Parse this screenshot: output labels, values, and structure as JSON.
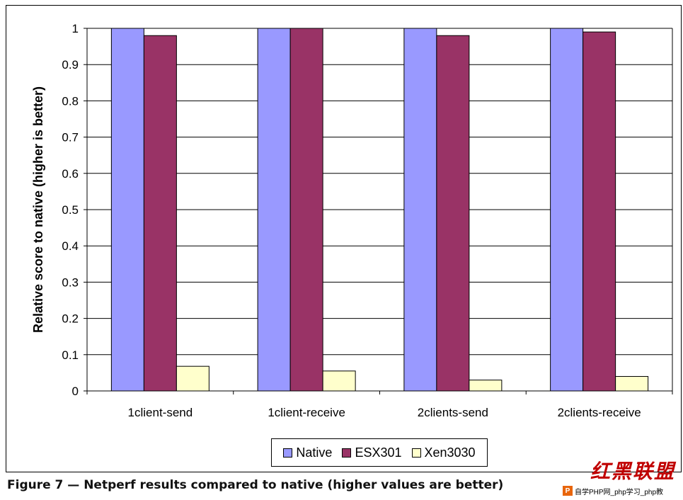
{
  "chart_data": {
    "type": "bar",
    "categories": [
      "1client-send",
      "1client-receive",
      "2clients-send",
      "2clients-receive"
    ],
    "series": [
      {
        "name": "Native",
        "values": [
          1.0,
          1.0,
          1.0,
          1.0
        ],
        "color": "#9999ff"
      },
      {
        "name": "ESX301",
        "values": [
          0.98,
          1.0,
          0.98,
          0.99
        ],
        "color": "#993366"
      },
      {
        "name": "Xen3030",
        "values": [
          0.068,
          0.055,
          0.03,
          0.04
        ],
        "color": "#ffffcc"
      }
    ],
    "xlabel": "",
    "ylabel": "Relative score to native (higher is better)",
    "ylim": [
      0,
      1
    ],
    "yticks": [
      "0",
      "0.1",
      "0.2",
      "0.3",
      "0.4",
      "0.5",
      "0.6",
      "0.7",
      "0.8",
      "0.9",
      "1"
    ],
    "grid": "horizontal major",
    "legend_position": "bottom"
  },
  "caption": "Figure 7 — Netperf results compared to native (higher values are better)",
  "watermark": {
    "logo_text": "红黑联盟",
    "site_text": "自学PHP网_php学习_php教",
    "site_icon": "P"
  }
}
